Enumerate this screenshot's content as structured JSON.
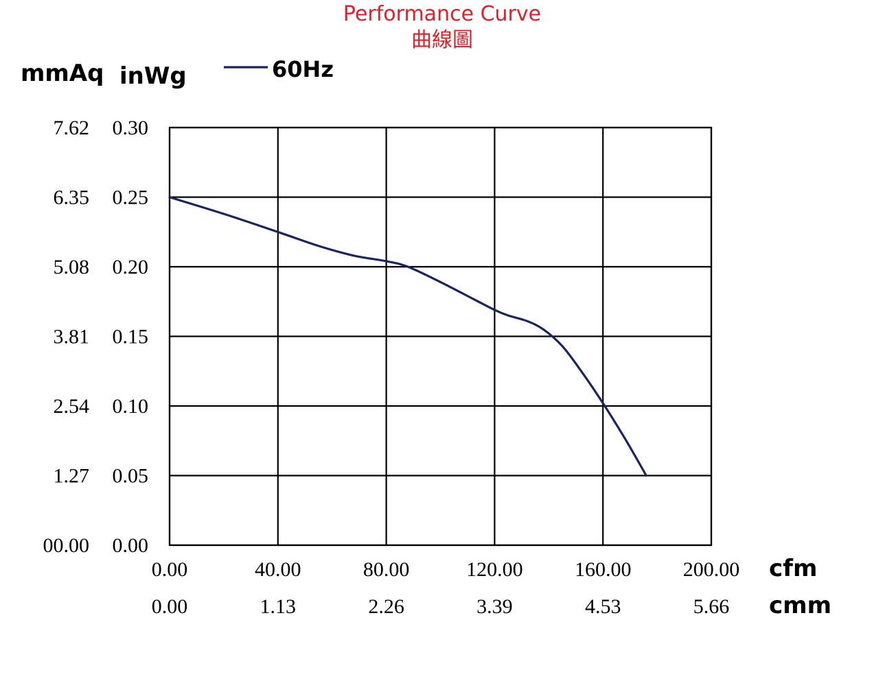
{
  "chart_data": {
    "type": "line",
    "title": "Performance Curve",
    "subtitle": "曲線圖",
    "ylabel_left": "mmAq",
    "ylabel_right": "inWg",
    "xlabel_primary": "cfm",
    "xlabel_secondary": "cmm",
    "legend": {
      "position": "top",
      "entries": [
        "60Hz"
      ]
    },
    "grid": true,
    "xlim": [
      0,
      200
    ],
    "ylim": [
      0,
      0.3
    ],
    "x_ticks_cfm": [
      "0.00",
      "40.00",
      "80.00",
      "120.00",
      "160.00",
      "200.00"
    ],
    "x_ticks_cmm": [
      "0.00",
      "1.13",
      "2.26",
      "3.39",
      "4.53",
      "5.66"
    ],
    "y_ticks_inwg": [
      "0.00",
      "0.05",
      "0.10",
      "0.15",
      "0.20",
      "0.25",
      "0.30"
    ],
    "y_ticks_mmaq": [
      "00.00",
      "1.27",
      "2.54",
      "3.81",
      "5.08",
      "6.35",
      "7.62"
    ],
    "series": [
      {
        "name": "60Hz",
        "color": "#17265e",
        "x": [
          0,
          20,
          40,
          55,
          68,
          80,
          88,
          100,
          112,
          120,
          125,
          132,
          138,
          145,
          152,
          160,
          168,
          176
        ],
        "y": [
          0.25,
          0.238,
          0.225,
          0.215,
          0.208,
          0.204,
          0.2,
          0.189,
          0.177,
          0.169,
          0.165,
          0.161,
          0.155,
          0.143,
          0.125,
          0.102,
          0.077,
          0.05
        ]
      }
    ]
  }
}
